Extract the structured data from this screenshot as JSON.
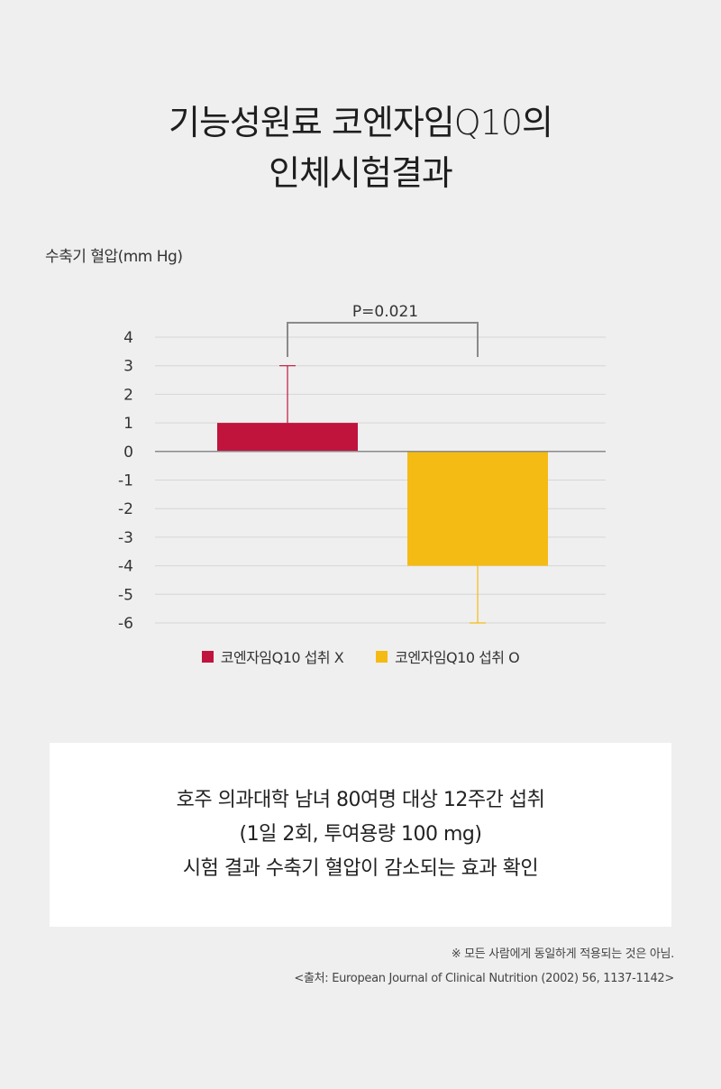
{
  "title": {
    "line1": "기능성원료 코엔자임Q10의",
    "line2": "인체시험결과"
  },
  "colors": {
    "red": "#c0143c",
    "yellow": "#f4bb14",
    "grid": "#d6d6d6",
    "axis": "#8a8a8a",
    "bracket": "#8a8a8a"
  },
  "chart_data": {
    "type": "bar",
    "ylabel": "수축기 혈압(mm Hg)",
    "ylim": [
      -6,
      4
    ],
    "yticks": [
      4,
      3,
      2,
      1,
      0,
      -1,
      -2,
      -3,
      -4,
      -5,
      -6
    ],
    "grid": true,
    "legend_position": "bottom",
    "series": [
      {
        "name": "코엔자임Q10 섭취 X",
        "value": 1,
        "error_upper": 3,
        "color": "#c0143c"
      },
      {
        "name": "코엔자임Q10 섭취 O",
        "value": -4,
        "error_lower": -6,
        "color": "#f4bb14"
      }
    ],
    "annotation": "P=0.021"
  },
  "info": {
    "line1": "호주 의과대학 남녀 80여명 대상 12주간 섭취",
    "line2": "(1일 2회, 투여용량 100 mg)",
    "line3": "시험 결과 수축기 혈압이 감소되는 효과 확인"
  },
  "notes": {
    "disclaimer": "※ 모든 사람에게 동일하게 적용되는 것은 아님.",
    "source": "<출처: European Journal of Clinical Nutrition (2002) 56, 1137-1142>"
  }
}
